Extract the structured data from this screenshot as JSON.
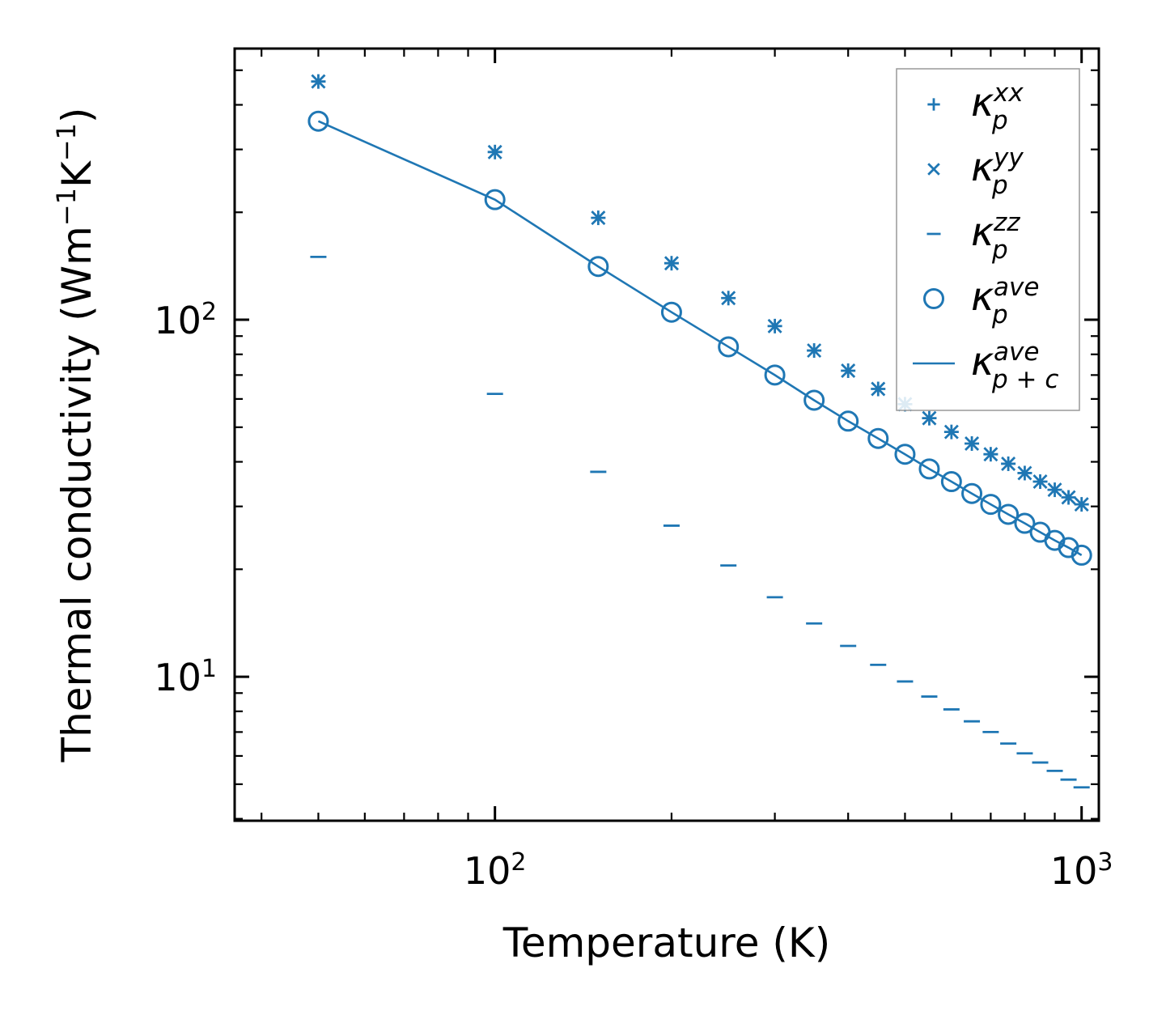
{
  "chart_data": {
    "type": "scatter",
    "x_scale": "log",
    "y_scale": "log",
    "xlabel": "Temperature (K)",
    "ylabel_parts": {
      "main": "Thermal conductivity (Wm",
      "sup1": "−1",
      "mid": "K",
      "sup2": "−1",
      "end": ")"
    },
    "xlim": [
      36,
      1070
    ],
    "ylim": [
      3.95,
      575
    ],
    "x_ticks": [
      {
        "value": 100,
        "base": "10",
        "exp": "2"
      },
      {
        "value": 1000,
        "base": "10",
        "exp": "3"
      }
    ],
    "y_ticks": [
      {
        "value": 10,
        "base": "10",
        "exp": "1"
      },
      {
        "value": 100,
        "base": "10",
        "exp": "2"
      }
    ],
    "color": "#1f77b4",
    "x": [
      50,
      100,
      150,
      200,
      250,
      300,
      350,
      400,
      450,
      500,
      550,
      600,
      650,
      700,
      750,
      800,
      850,
      900,
      950,
      1000
    ],
    "series": [
      {
        "key": "xx",
        "name": "κ_p^xx",
        "marker": "plus",
        "values": [
          465,
          295,
          193,
          144,
          115,
          96,
          82,
          72,
          64,
          58,
          53,
          48.5,
          45,
          42,
          39.5,
          37.2,
          35.2,
          33.4,
          31.8,
          30.4
        ]
      },
      {
        "key": "yy",
        "name": "κ_p^yy",
        "marker": "x",
        "values": [
          465,
          295,
          193,
          144,
          115,
          96,
          82,
          72,
          64,
          58,
          53,
          48.5,
          45,
          42,
          39.5,
          37.2,
          35.2,
          33.4,
          31.8,
          30.4
        ]
      },
      {
        "key": "zz",
        "name": "κ_p^zz",
        "marker": "hline",
        "values": [
          150,
          62,
          37.5,
          26.5,
          20.5,
          16.7,
          14.1,
          12.2,
          10.8,
          9.7,
          8.8,
          8.1,
          7.5,
          7.0,
          6.5,
          6.1,
          5.75,
          5.45,
          5.15,
          4.9
        ]
      },
      {
        "key": "ave",
        "name": "κ_p^ave",
        "marker": "circle",
        "values": [
          360,
          217,
          141,
          105,
          84,
          70,
          59.5,
          52,
          46.5,
          42,
          38.2,
          35.2,
          32.6,
          30.4,
          28.5,
          26.9,
          25.4,
          24.1,
          23.0,
          21.9
        ]
      },
      {
        "key": "ave_pc",
        "name": "κ_p+c^ave",
        "marker": "line",
        "values": [
          360,
          217,
          141,
          105,
          84,
          70,
          59.5,
          52,
          46.5,
          42,
          38.2,
          35.2,
          32.6,
          30.4,
          28.5,
          26.9,
          25.4,
          24.1,
          23.0,
          21.9
        ]
      }
    ],
    "legend": {
      "position": "top-right",
      "entries": [
        {
          "symbol": "κ",
          "sub": "p",
          "sup": "xx",
          "marker": "plus"
        },
        {
          "symbol": "κ",
          "sub": "p",
          "sup": "yy",
          "marker": "x"
        },
        {
          "symbol": "κ",
          "sub": "p",
          "sup": "zz",
          "marker": "hline"
        },
        {
          "symbol": "κ",
          "sub": "p",
          "sup": "ave",
          "marker": "circle"
        },
        {
          "symbol": "κ",
          "sub": "p + c",
          "sup": "ave",
          "marker": "line"
        }
      ]
    }
  }
}
